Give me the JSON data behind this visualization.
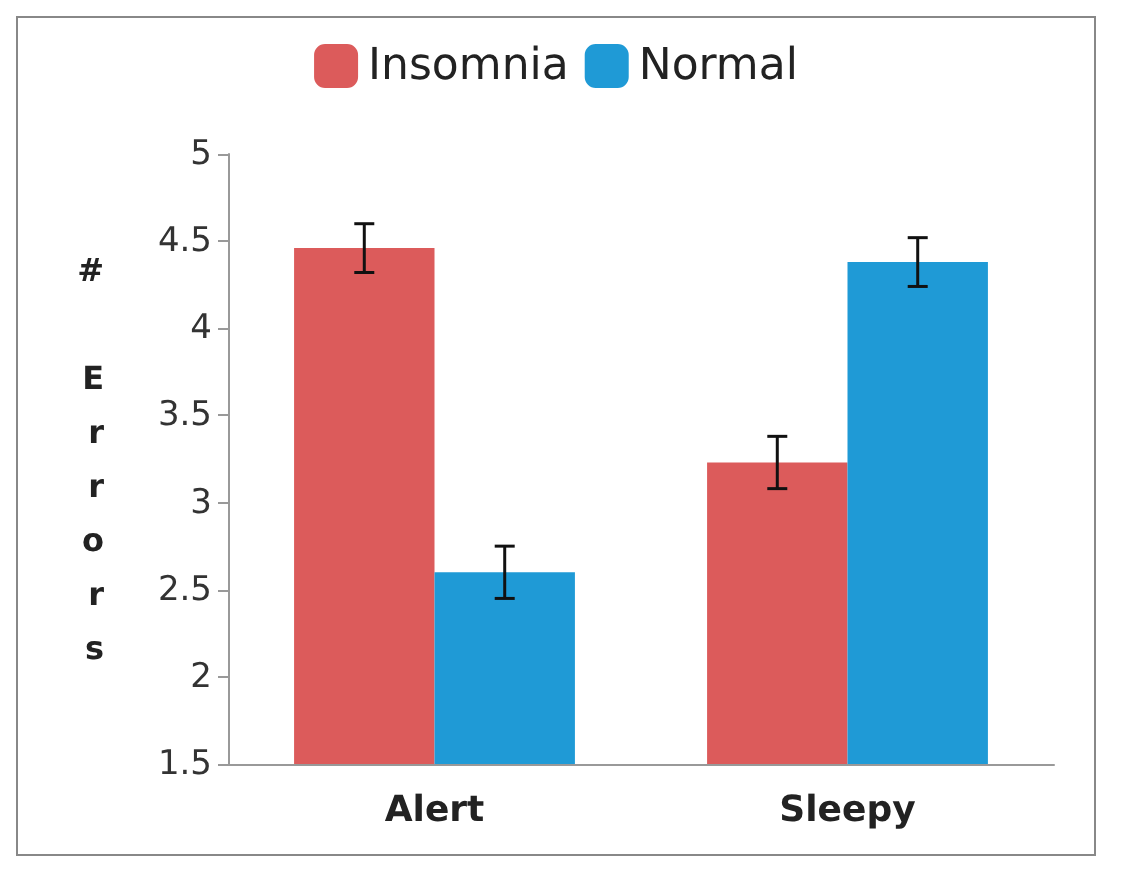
{
  "chart_data": {
    "type": "bar",
    "ylabel": "# Errors",
    "categories": [
      "Alert",
      "Sleepy"
    ],
    "series": [
      {
        "name": "Insomnia",
        "color": "#dc5b5b",
        "values": [
          4.46,
          3.23
        ],
        "errors": [
          0.14,
          0.15
        ]
      },
      {
        "name": "Normal",
        "color": "#1f9ad6",
        "values": [
          2.6,
          4.38
        ],
        "errors": [
          0.15,
          0.14
        ]
      }
    ],
    "ylim": [
      1.5,
      5
    ],
    "yticks": [
      1.5,
      2,
      2.5,
      3,
      3.5,
      4,
      4.5,
      5
    ],
    "grid": false,
    "legend": "top"
  }
}
